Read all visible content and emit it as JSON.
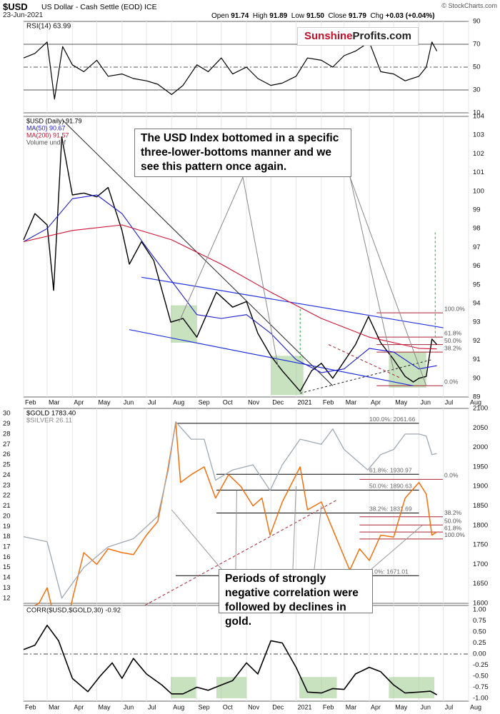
{
  "header": {
    "symbol": "$USD",
    "description": "US Dollar - Cash Settle (EOD) ICE",
    "date": "23-Jun-2021",
    "open_label": "Open",
    "open": "91.74",
    "high_label": "High",
    "high": "91.89",
    "low_label": "Low",
    "low": "91.50",
    "close_label": "Close",
    "close": "91.79",
    "chg_label": "Chg",
    "chg": "+0.03 (+0.04%)",
    "brand": "© StockCharts.com"
  },
  "logo": {
    "part1": "Sunshine",
    "part2": "Profits.com"
  },
  "annotations": {
    "usd_note": "The USD Index bottomed in a specific three-lower-bottoms manner and we see this pattern once again.",
    "corr_note": "Periods of strongly negative correlation were followed by declines in gold."
  },
  "colors": {
    "usd_price": "#000000",
    "ma50": "#1a1acc",
    "ma200": "#cc1133",
    "gold": "#f07010",
    "silver": "#a0a8b0",
    "corr": "#000000",
    "channel": "#2233dd",
    "fib": "#aa2233",
    "highlight": "#9bc88a",
    "signal": "#22aa33"
  },
  "chart_data": [
    {
      "type": "line",
      "panel": "rsi",
      "title": "RSI(14) 63.99",
      "ylim": [
        10,
        90
      ],
      "y_ticks": [
        "90",
        "70",
        "50",
        "30",
        "10"
      ],
      "reference_lines": [
        70,
        50,
        30
      ],
      "x": [
        "2020-02-01",
        "2020-02-15",
        "2020-03-01",
        "2020-03-10",
        "2020-03-20",
        "2020-04-01",
        "2020-04-15",
        "2020-05-01",
        "2020-05-15",
        "2020-06-01",
        "2020-06-15",
        "2020-07-01",
        "2020-07-15",
        "2020-08-01",
        "2020-08-15",
        "2020-09-01",
        "2020-09-15",
        "2020-10-01",
        "2020-10-15",
        "2020-11-01",
        "2020-11-15",
        "2020-12-01",
        "2020-12-15",
        "2021-01-01",
        "2021-01-15",
        "2021-02-01",
        "2021-02-15",
        "2021-03-01",
        "2021-03-15",
        "2021-04-01",
        "2021-04-15",
        "2021-05-01",
        "2021-05-15",
        "2021-06-01",
        "2021-06-10",
        "2021-06-17",
        "2021-06-23"
      ],
      "values": [
        58,
        62,
        72,
        22,
        68,
        52,
        46,
        56,
        42,
        44,
        40,
        38,
        35,
        26,
        34,
        52,
        46,
        58,
        44,
        50,
        40,
        34,
        36,
        42,
        58,
        56,
        50,
        60,
        64,
        72,
        46,
        44,
        38,
        42,
        50,
        72,
        64
      ]
    },
    {
      "type": "line",
      "panel": "usd",
      "title": "$USD (Daily) 91.79",
      "legend": [
        "$USD (Daily) 91.79",
        "MA(50) 90.67",
        "MA(200) 91.57",
        "Volume undef"
      ],
      "ylim": [
        89,
        104
      ],
      "y_ticks": [
        "104",
        "103",
        "102",
        "101",
        "100",
        "99",
        "98",
        "97",
        "96",
        "95",
        "94",
        "93",
        "92",
        "91",
        "90",
        "89"
      ],
      "x_ticks": [
        "Feb",
        "Mar",
        "Apr",
        "May",
        "Jun",
        "Jul",
        "Aug",
        "Sep",
        "Oct",
        "Nov",
        "Dec",
        "2021",
        "Feb",
        "Mar",
        "Apr",
        "May",
        "Jun",
        "Jul",
        "Aug"
      ],
      "series": [
        {
          "name": "$USD (Daily)",
          "x": [
            "2020-02-01",
            "2020-02-15",
            "2020-03-01",
            "2020-03-09",
            "2020-03-19",
            "2020-04-01",
            "2020-04-15",
            "2020-05-01",
            "2020-05-15",
            "2020-06-01",
            "2020-06-10",
            "2020-06-25",
            "2020-07-10",
            "2020-07-31",
            "2020-08-15",
            "2020-09-01",
            "2020-09-25",
            "2020-10-15",
            "2020-11-01",
            "2020-11-15",
            "2020-12-01",
            "2020-12-15",
            "2021-01-06",
            "2021-01-20",
            "2021-02-01",
            "2021-02-15",
            "2021-03-01",
            "2021-03-15",
            "2021-03-31",
            "2021-04-15",
            "2021-05-01",
            "2021-05-15",
            "2021-05-25",
            "2021-06-01",
            "2021-06-10",
            "2021-06-17",
            "2021-06-23"
          ],
          "values": [
            97.4,
            98.8,
            98.2,
            94.7,
            102.9,
            99.8,
            99.9,
            99.7,
            100.2,
            97.9,
            96.1,
            97.3,
            96.3,
            93.0,
            93.2,
            92.2,
            94.6,
            93.8,
            94.1,
            92.4,
            91.2,
            90.4,
            89.3,
            90.4,
            90.8,
            90.0,
            90.9,
            91.8,
            93.3,
            91.9,
            91.0,
            90.1,
            89.8,
            90.0,
            90.1,
            92.1,
            91.8
          ]
        },
        {
          "name": "MA(50)",
          "x": [
            "2020-02-01",
            "2020-03-01",
            "2020-04-01",
            "2020-05-01",
            "2020-06-01",
            "2020-07-01",
            "2020-08-01",
            "2020-09-01",
            "2020-10-01",
            "2020-11-01",
            "2020-12-01",
            "2021-01-01",
            "2021-02-01",
            "2021-03-01",
            "2021-04-01",
            "2021-05-01",
            "2021-06-01",
            "2021-06-23"
          ],
          "values": [
            97.3,
            98.0,
            99.6,
            99.8,
            98.8,
            97.0,
            95.2,
            93.4,
            93.2,
            93.4,
            92.4,
            91.0,
            90.3,
            90.5,
            91.6,
            91.4,
            90.5,
            90.67
          ]
        },
        {
          "name": "MA(200)",
          "x": [
            "2020-02-01",
            "2020-04-01",
            "2020-06-01",
            "2020-08-01",
            "2020-10-01",
            "2020-12-01",
            "2021-02-01",
            "2021-04-01",
            "2021-06-01",
            "2021-06-23"
          ],
          "values": [
            97.3,
            97.9,
            98.2,
            97.4,
            96.1,
            94.6,
            93.2,
            92.2,
            91.6,
            91.57
          ]
        }
      ],
      "fib_levels": [
        {
          "label": "100.0%",
          "value": 93.5
        },
        {
          "label": "61.8%",
          "value": 92.2
        },
        {
          "label": "50.0%",
          "value": 91.8
        },
        {
          "label": "38.2%",
          "value": 91.4
        },
        {
          "label": "0.0%",
          "value": 89.6
        }
      ]
    },
    {
      "type": "line",
      "panel": "gold",
      "title": "$GOLD 1783.40",
      "legend": [
        "$GOLD 1783.40",
        "$SILVER 26.11"
      ],
      "y_right": {
        "range": [
          1600,
          2100
        ],
        "ticks": [
          "2100",
          "2050",
          "2000",
          "1950",
          "1900",
          "1850",
          "1800",
          "1750",
          "1700",
          "1650",
          "1600"
        ]
      },
      "y_left": {
        "range": [
          11.5,
          30.5
        ],
        "ticks": [
          "30",
          "29",
          "28",
          "27",
          "26",
          "25",
          "24",
          "23",
          "22",
          "21",
          "20",
          "19",
          "18",
          "17",
          "16",
          "15",
          "14",
          "13",
          "12"
        ]
      },
      "series": [
        {
          "name": "$GOLD",
          "x": [
            "2020-02-01",
            "2020-02-20",
            "2020-03-01",
            "2020-03-10",
            "2020-03-19",
            "2020-04-01",
            "2020-04-15",
            "2020-05-01",
            "2020-05-15",
            "2020-06-01",
            "2020-06-15",
            "2020-07-01",
            "2020-07-15",
            "2020-07-27",
            "2020-08-06",
            "2020-08-12",
            "2020-08-25",
            "2020-09-10",
            "2020-09-24",
            "2020-10-10",
            "2020-10-25",
            "2020-11-09",
            "2020-11-20",
            "2020-11-30",
            "2020-12-15",
            "2021-01-06",
            "2021-01-15",
            "2021-02-01",
            "2021-02-15",
            "2021-03-01",
            "2021-03-08",
            "2021-03-20",
            "2021-04-01",
            "2021-04-15",
            "2021-05-01",
            "2021-05-15",
            "2021-06-01",
            "2021-06-10",
            "2021-06-17",
            "2021-06-23"
          ],
          "values": [
            1580,
            1600,
            1640,
            1560,
            1478,
            1610,
            1730,
            1700,
            1740,
            1730,
            1725,
            1775,
            1810,
            1940,
            2063,
            1910,
            1930,
            1950,
            1870,
            1930,
            1900,
            1850,
            1870,
            1775,
            1860,
            1950,
            1840,
            1860,
            1790,
            1720,
            1685,
            1740,
            1710,
            1775,
            1770,
            1870,
            1910,
            1880,
            1775,
            1783.4
          ]
        },
        {
          "name": "$SILVER",
          "x": [
            "2020-02-01",
            "2020-03-01",
            "2020-03-19",
            "2020-04-15",
            "2020-05-15",
            "2020-06-15",
            "2020-07-15",
            "2020-07-28",
            "2020-08-06",
            "2020-08-25",
            "2020-09-10",
            "2020-09-24",
            "2020-10-15",
            "2020-11-09",
            "2020-11-30",
            "2020-12-15",
            "2021-01-06",
            "2021-02-01",
            "2021-02-15",
            "2021-03-01",
            "2021-03-30",
            "2021-04-15",
            "2021-05-01",
            "2021-05-15",
            "2021-06-01",
            "2021-06-10",
            "2021-06-17",
            "2021-06-23"
          ],
          "values": [
            18,
            17.5,
            12,
            15,
            17,
            17.8,
            20,
            24.5,
            29.2,
            27.5,
            27.5,
            23.5,
            24.5,
            25,
            22.5,
            25,
            27.5,
            27,
            28.5,
            26.5,
            24.5,
            26,
            26.5,
            28,
            28,
            27.8,
            26,
            26.11
          ]
        }
      ],
      "fib_levels": [
        {
          "label": "100.0%: 2061.66",
          "value": 2061.66
        },
        {
          "label": "61.8%: 1930.97",
          "value": 1930.97
        },
        {
          "label": "50.0%: 1890.63",
          "value": 1890.63
        },
        {
          "label": "38.2%: 1831.69",
          "value": 1831.69
        },
        {
          "label": "0.0%: 1671.01",
          "value": 1671.01
        }
      ],
      "fib_right_labels": [
        "0.0%",
        "38.2%",
        "50.0%",
        "61.8%",
        "100.0%"
      ]
    },
    {
      "type": "line",
      "panel": "corr",
      "title": "CORR($USD,$GOLD,30) -0.92",
      "ylim": [
        -1.0,
        1.0
      ],
      "y_ticks": [
        "1.00",
        "0.75",
        "0.50",
        "0.25",
        "0.00",
        "-0.25",
        "-0.50",
        "-0.75",
        "-1.00"
      ],
      "x_ticks": [
        "Feb",
        "Mar",
        "Apr",
        "May",
        "Jun",
        "Jul",
        "Aug",
        "Sep",
        "Oct",
        "Nov",
        "Dec",
        "2021",
        "Feb",
        "Mar",
        "Apr",
        "May",
        "Jun",
        "Jul",
        "Aug"
      ],
      "x": [
        "2020-02-01",
        "2020-02-15",
        "2020-03-01",
        "2020-03-15",
        "2020-04-01",
        "2020-04-20",
        "2020-05-05",
        "2020-05-20",
        "2020-06-01",
        "2020-06-15",
        "2020-07-01",
        "2020-07-20",
        "2020-08-01",
        "2020-08-15",
        "2020-09-01",
        "2020-09-15",
        "2020-10-01",
        "2020-10-15",
        "2020-11-01",
        "2020-11-15",
        "2020-12-01",
        "2020-12-15",
        "2021-01-01",
        "2021-01-15",
        "2021-02-01",
        "2021-02-15",
        "2021-03-01",
        "2021-03-15",
        "2021-04-01",
        "2021-04-15",
        "2021-05-01",
        "2021-05-15",
        "2021-06-01",
        "2021-06-15",
        "2021-06-23"
      ],
      "values": [
        0.1,
        0.2,
        0.65,
        0.3,
        -0.55,
        -0.85,
        -0.5,
        -0.2,
        -0.55,
        -0.1,
        -0.45,
        -0.7,
        -0.9,
        -0.9,
        -0.75,
        -0.82,
        -0.7,
        -0.6,
        -0.2,
        -0.45,
        0.3,
        0.25,
        -0.3,
        -0.86,
        -0.88,
        -0.78,
        -0.8,
        -0.45,
        -0.3,
        -0.4,
        -0.7,
        -0.88,
        -0.86,
        -0.84,
        -0.92
      ]
    }
  ]
}
